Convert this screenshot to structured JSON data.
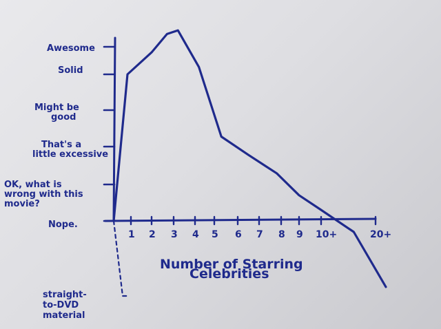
{
  "chart_data": {
    "type": "line",
    "title": "",
    "xlabel": "Number of Starring Celebrities",
    "ylabel": "",
    "x_ticks": [
      "1",
      "2",
      "3",
      "4",
      "5",
      "6",
      "7",
      "8",
      "9",
      "10+",
      "20+"
    ],
    "y_ticks": [
      {
        "label": "Nope.",
        "level": 0
      },
      {
        "label": "OK, what is wrong with this movie?",
        "level": 1
      },
      {
        "label": "That's a little excessive",
        "level": 2
      },
      {
        "label": "Might be good",
        "level": 3
      },
      {
        "label": "Solid",
        "level": 4
      },
      {
        "label": "Awesome",
        "level": 5
      }
    ],
    "below_axis": {
      "label": "straight-to-DVD material",
      "level": -2
    },
    "series": [
      {
        "x": [
          0,
          0.8,
          2.0,
          2.7,
          3.2,
          4.2,
          5.3,
          6.5,
          7.8,
          9.0,
          10.0,
          10.6,
          11.5
        ],
        "y": [
          0,
          4.0,
          4.6,
          5.1,
          5.2,
          4.2,
          2.3,
          1.8,
          1.3,
          0.7,
          0.3,
          -0.3,
          -1.8
        ]
      }
    ],
    "grid": false,
    "legend": "none"
  }
}
